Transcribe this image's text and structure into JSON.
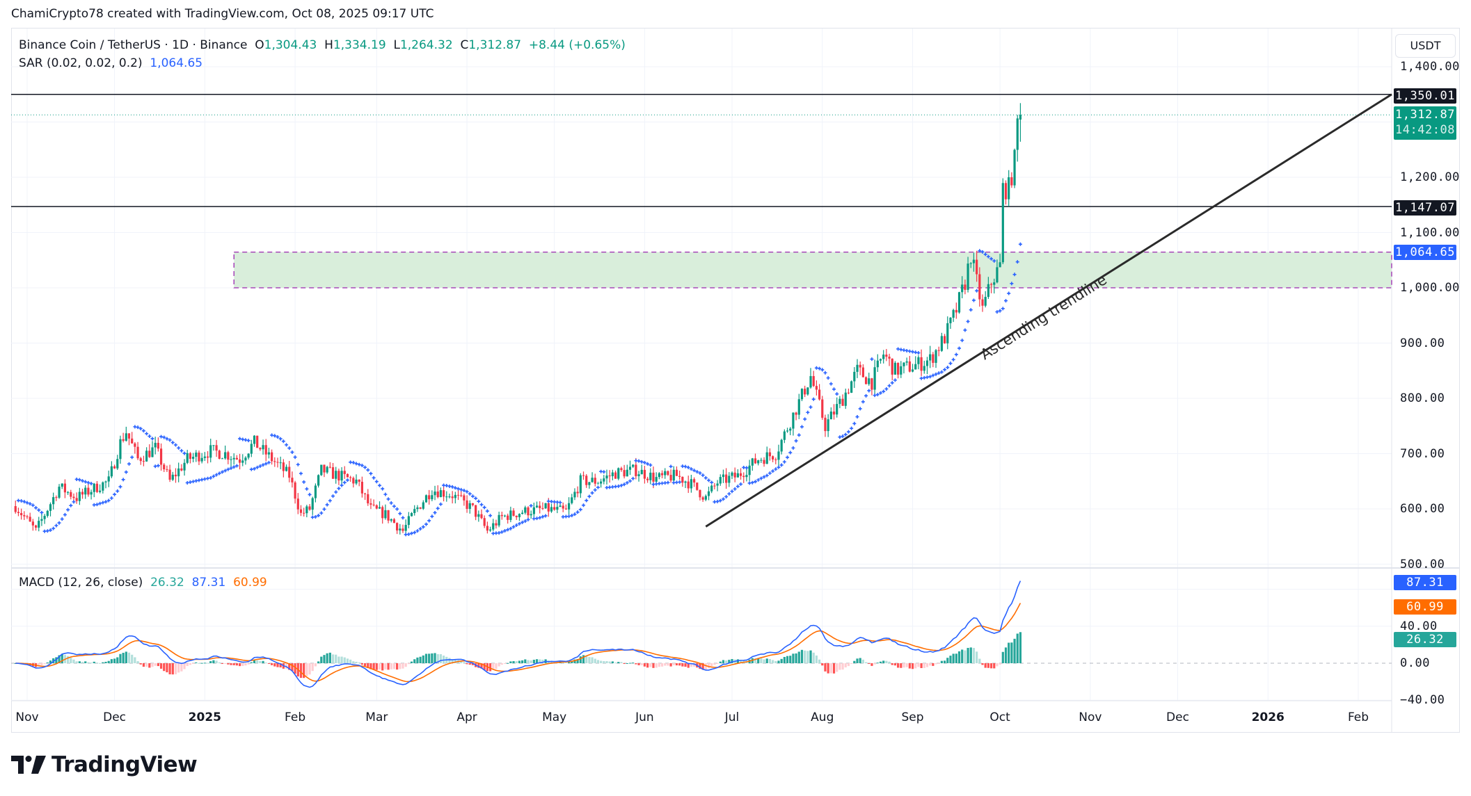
{
  "credit": "ChamiCrypto78 created with TradingView.com, Oct 08, 2025 09:17 UTC",
  "legend": {
    "symbol": "Binance Coin / TetherUS · 1D · Binance",
    "o_label": "O",
    "open": "1,304.43",
    "h_label": "H",
    "high": "1,334.19",
    "l_label": "L",
    "low": "1,264.32",
    "c_label": "C",
    "close": "1,312.87",
    "change": "+8.44 (+0.65%)",
    "sar_label": "SAR (0.02, 0.02, 0.2)",
    "sar_value": "1,064.65"
  },
  "macd_legend": {
    "label": "MACD (12, 26, close)",
    "histogram": "26.32",
    "macd": "87.31",
    "signal": "60.99"
  },
  "currency_button": "USDT",
  "price_axis": [
    "1,400.00",
    "1,200.00",
    "1,100.00",
    "1,000.00",
    "900.00",
    "800.00",
    "700.00",
    "600.00",
    "500.00"
  ],
  "macd_axis": [
    "40.00",
    "0.00",
    "−40.00"
  ],
  "tags": {
    "resistance": "1,350.01",
    "last_price": "1,312.87",
    "countdown": "14:42:08",
    "support": "1,147.07",
    "sar": "1,064.65",
    "macd": "87.31",
    "signal": "60.99",
    "histogram": "26.32"
  },
  "time_axis": [
    "Nov",
    "Dec",
    "2025",
    "Feb",
    "Mar",
    "Apr",
    "May",
    "Jun",
    "Jul",
    "Aug",
    "Sep",
    "Oct",
    "Nov",
    "Dec",
    "2026",
    "Feb"
  ],
  "annotation": "Ascending trendline",
  "logo": "TradingView",
  "colors": {
    "up": "#089981",
    "down": "#f23645",
    "sar": "#2962ff",
    "macd": "#2962ff",
    "signal": "#ff6d00",
    "zone": "#d9eedb",
    "zone_border": "#9c27b0"
  },
  "chart_data": {
    "type": "candlestick",
    "interval": "1D",
    "ylim": [
      500,
      1420
    ],
    "x_range": [
      "2024-10-28",
      "2026-02-28"
    ],
    "horizontal_lines": [
      1350.01,
      1147.07
    ],
    "zone": {
      "from_date": "2025-01-11",
      "top": 1064.65,
      "bottom": 1000
    },
    "trendline": {
      "start": [
        "2025-06-22",
        568
      ],
      "end": [
        "2026-03-01",
        1350.01
      ],
      "label": "Ascending trendline"
    },
    "approx_closes": [
      [
        "2024-10-28",
        605
      ],
      [
        "2024-11-04",
        560
      ],
      [
        "2024-11-08",
        600
      ],
      [
        "2024-11-12",
        640
      ],
      [
        "2024-11-18",
        620
      ],
      [
        "2024-11-25",
        640
      ],
      [
        "2024-11-29",
        650
      ],
      [
        "2024-12-03",
        720
      ],
      [
        "2024-12-05",
        740
      ],
      [
        "2024-12-09",
        690
      ],
      [
        "2024-12-15",
        710
      ],
      [
        "2024-12-20",
        650
      ],
      [
        "2024-12-26",
        690
      ],
      [
        "2025-01-03",
        705
      ],
      [
        "2025-01-08",
        700
      ],
      [
        "2025-01-13",
        690
      ],
      [
        "2025-01-18",
        720
      ],
      [
        "2025-01-24",
        690
      ],
      [
        "2025-01-30",
        660
      ],
      [
        "2025-02-03",
        590
      ],
      [
        "2025-02-06",
        600
      ],
      [
        "2025-02-10",
        670
      ],
      [
        "2025-02-16",
        660
      ],
      [
        "2025-02-22",
        650
      ],
      [
        "2025-02-27",
        600
      ],
      [
        "2025-03-04",
        590
      ],
      [
        "2025-03-10",
        560
      ],
      [
        "2025-03-14",
        595
      ],
      [
        "2025-03-20",
        635
      ],
      [
        "2025-03-27",
        625
      ],
      [
        "2025-04-03",
        600
      ],
      [
        "2025-04-08",
        560
      ],
      [
        "2025-04-13",
        585
      ],
      [
        "2025-04-20",
        595
      ],
      [
        "2025-04-28",
        600
      ],
      [
        "2025-05-05",
        595
      ],
      [
        "2025-05-10",
        650
      ],
      [
        "2025-05-16",
        650
      ],
      [
        "2025-05-22",
        665
      ],
      [
        "2025-05-29",
        670
      ],
      [
        "2025-06-05",
        655
      ],
      [
        "2025-06-12",
        660
      ],
      [
        "2025-06-17",
        645
      ],
      [
        "2025-06-22",
        620
      ],
      [
        "2025-06-26",
        648
      ],
      [
        "2025-07-03",
        660
      ],
      [
        "2025-07-10",
        690
      ],
      [
        "2025-07-16",
        700
      ],
      [
        "2025-07-22",
        770
      ],
      [
        "2025-07-28",
        840
      ],
      [
        "2025-08-02",
        750
      ],
      [
        "2025-08-08",
        800
      ],
      [
        "2025-08-13",
        850
      ],
      [
        "2025-08-18",
        830
      ],
      [
        "2025-08-22",
        880
      ],
      [
        "2025-08-26",
        850
      ],
      [
        "2025-09-02",
        860
      ],
      [
        "2025-09-07",
        870
      ],
      [
        "2025-09-12",
        910
      ],
      [
        "2025-09-16",
        960
      ],
      [
        "2025-09-19",
        1010
      ],
      [
        "2025-09-21",
        1060
      ],
      [
        "2025-09-25",
        960
      ],
      [
        "2025-09-28",
        1010
      ],
      [
        "2025-10-01",
        1040
      ],
      [
        "2025-10-02",
        1180
      ],
      [
        "2025-10-04",
        1180
      ],
      [
        "2025-10-06",
        1230
      ],
      [
        "2025-10-07",
        1300
      ],
      [
        "2025-10-08",
        1312.87
      ]
    ],
    "last_candle": {
      "date": "2025-10-08",
      "open": 1304.43,
      "high": 1334.19,
      "low": 1264.32,
      "close": 1312.87
    },
    "indicators": {
      "sar": {
        "params": [
          0.02,
          0.02,
          0.2
        ],
        "value": 1064.65
      },
      "macd": {
        "params": [
          12,
          26
        ],
        "macd": 87.31,
        "signal": 60.99,
        "histogram": 26.32,
        "ylim": [
          -45,
          95
        ]
      }
    }
  }
}
